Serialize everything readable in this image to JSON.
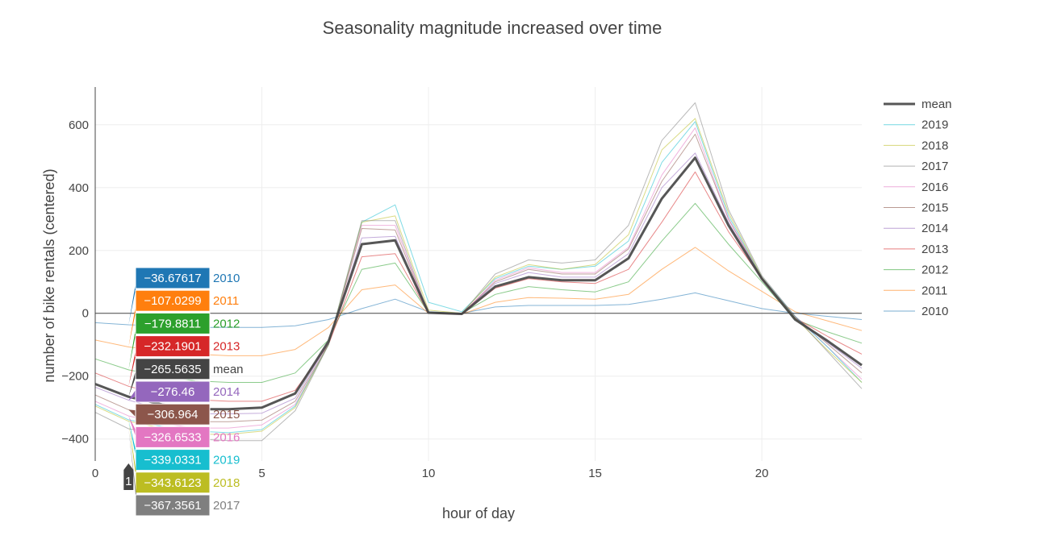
{
  "chart_data": {
    "type": "line",
    "title": "Seasonality magnitude increased over time",
    "xlabel": "hour of day",
    "ylabel": "number of bike rentals (centered)",
    "xlim": [
      0,
      23
    ],
    "ylim": [
      -470,
      720
    ],
    "xticks": [
      0,
      5,
      10,
      15,
      20
    ],
    "yticks": [
      -400,
      -200,
      0,
      200,
      400,
      600
    ],
    "grid": true,
    "zero_line": true,
    "legend_position": "right",
    "x": [
      0,
      1,
      2,
      3,
      4,
      5,
      6,
      7,
      8,
      9,
      10,
      11,
      12,
      13,
      14,
      15,
      16,
      17,
      18,
      19,
      20,
      21,
      22,
      23
    ],
    "series": [
      {
        "name": "2010",
        "color": "#1f77b4",
        "width": 1,
        "values": [
          -30,
          -36.67617,
          -40,
          -45,
          -45,
          -45,
          -40,
          -20,
          15,
          45,
          5,
          0,
          20,
          25,
          25,
          25,
          28,
          45,
          65,
          40,
          15,
          0,
          -10,
          -20
        ]
      },
      {
        "name": "2011",
        "color": "#ff7f0e",
        "width": 1,
        "values": [
          -85,
          -107.0299,
          -120,
          -130,
          -135,
          -135,
          -115,
          -45,
          75,
          90,
          0,
          -3,
          35,
          50,
          48,
          45,
          60,
          140,
          210,
          135,
          70,
          5,
          -25,
          -55
        ]
      },
      {
        "name": "2012",
        "color": "#2ca02c",
        "width": 1,
        "values": [
          -145,
          -179.8811,
          -200,
          -215,
          -220,
          -220,
          -190,
          -85,
          140,
          160,
          2,
          0,
          60,
          85,
          75,
          68,
          100,
          230,
          350,
          220,
          100,
          -20,
          -60,
          -95
        ]
      },
      {
        "name": "2013",
        "color": "#d62728",
        "width": 1,
        "values": [
          -190,
          -232.1901,
          -260,
          -275,
          -280,
          -280,
          -245,
          -100,
          180,
          190,
          0,
          -3,
          80,
          110,
          100,
          95,
          140,
          290,
          450,
          260,
          110,
          -15,
          -75,
          -130
        ]
      },
      {
        "name": "mean",
        "color": "#444444",
        "width": 3,
        "values": [
          -225,
          -265.5635,
          -290,
          -305,
          -305,
          -300,
          -255,
          -90,
          220,
          232,
          2,
          -2,
          85,
          115,
          105,
          105,
          175,
          365,
          495,
          280,
          110,
          -20,
          -90,
          -165
        ]
      },
      {
        "name": "2014",
        "color": "#9467bd",
        "width": 1,
        "values": [
          -235,
          -276.46,
          -305,
          -320,
          -320,
          -318,
          -270,
          -95,
          240,
          245,
          0,
          -2,
          95,
          130,
          115,
          115,
          190,
          400,
          510,
          290,
          110,
          -15,
          -95,
          -175
        ]
      },
      {
        "name": "2015",
        "color": "#8c564b",
        "width": 1,
        "values": [
          -260,
          -306.964,
          -335,
          -345,
          -345,
          -340,
          -280,
          -100,
          270,
          265,
          0,
          -2,
          100,
          140,
          125,
          125,
          205,
          420,
          570,
          300,
          110,
          -10,
          -100,
          -190
        ]
      },
      {
        "name": "2016",
        "color": "#e377c2",
        "width": 1,
        "values": [
          -280,
          -326.6533,
          -350,
          -365,
          -365,
          -355,
          -290,
          -100,
          280,
          280,
          0,
          -3,
          105,
          145,
          130,
          130,
          210,
          440,
          590,
          300,
          115,
          -10,
          -110,
          -210
        ]
      },
      {
        "name": "2019",
        "color": "#17becf",
        "width": 1,
        "values": [
          -290,
          -339.0331,
          -360,
          -375,
          -380,
          -370,
          -295,
          -100,
          290,
          345,
          35,
          5,
          110,
          150,
          140,
          150,
          230,
          480,
          610,
          310,
          115,
          -10,
          -110,
          -220
        ]
      },
      {
        "name": "2018",
        "color": "#bcbd22",
        "width": 1,
        "values": [
          -295,
          -343.6123,
          -365,
          -385,
          -385,
          -375,
          -300,
          -100,
          290,
          310,
          10,
          0,
          115,
          155,
          140,
          155,
          250,
          520,
          620,
          320,
          115,
          -15,
          -120,
          -220
        ]
      },
      {
        "name": "2017",
        "color": "#7f7f7f",
        "width": 1,
        "values": [
          -315,
          -367.3561,
          -385,
          -400,
          -405,
          -405,
          -310,
          -100,
          295,
          295,
          0,
          -2,
          125,
          170,
          160,
          170,
          280,
          550,
          670,
          330,
          120,
          -10,
          -125,
          -240
        ]
      }
    ],
    "legend_order": [
      "mean",
      "2019",
      "2018",
      "2017",
      "2016",
      "2015",
      "2014",
      "2013",
      "2012",
      "2011",
      "2010"
    ],
    "hover": {
      "x_label": "1",
      "entries": [
        {
          "value": "−36.67617",
          "name": "2010",
          "color": "#1f77b4"
        },
        {
          "value": "−107.0299",
          "name": "2011",
          "color": "#ff7f0e"
        },
        {
          "value": "−179.8811",
          "name": "2012",
          "color": "#2ca02c"
        },
        {
          "value": "−232.1901",
          "name": "2013",
          "color": "#d62728"
        },
        {
          "value": "−265.5635",
          "name": "mean",
          "color": "#444444"
        },
        {
          "value": "−276.46",
          "name": "2014",
          "color": "#9467bd"
        },
        {
          "value": "−306.964",
          "name": "2015",
          "color": "#8c564b"
        },
        {
          "value": "−326.6533",
          "name": "2016",
          "color": "#e377c2"
        },
        {
          "value": "−339.0331",
          "name": "2019",
          "color": "#17becf"
        },
        {
          "value": "−343.6123",
          "name": "2018",
          "color": "#bcbd22"
        },
        {
          "value": "−367.3561",
          "name": "2017",
          "color": "#7f7f7f"
        }
      ]
    }
  }
}
